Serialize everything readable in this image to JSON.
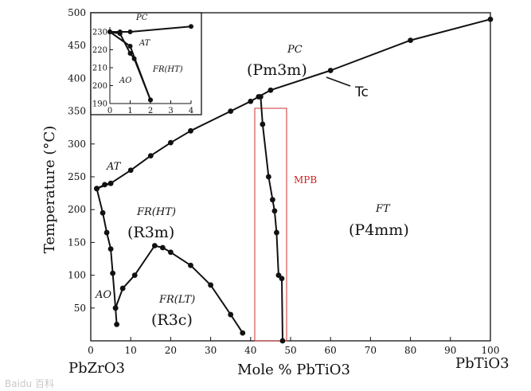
{
  "chart_data": {
    "type": "line",
    "title": "",
    "xlabel": "Mole % PbTiO3",
    "ylabel": "Temperature (°C)",
    "xlim": [
      0,
      100
    ],
    "ylim": [
      0,
      500
    ],
    "x_ticks": [
      0,
      10,
      20,
      30,
      40,
      50,
      60,
      70,
      80,
      90,
      100
    ],
    "y_ticks": [
      50,
      100,
      150,
      200,
      250,
      300,
      350,
      400,
      450,
      500
    ],
    "x_tick_labels": [
      "0",
      "10",
      "20",
      "30",
      "40",
      "50",
      "60",
      "70",
      "80",
      "90",
      "100"
    ],
    "y_tick_labels": [
      "50",
      "100",
      "150",
      "200",
      "250",
      "300",
      "350",
      "400",
      "450",
      "500"
    ],
    "grid": false,
    "composition_labels": {
      "left": "PbZrO3",
      "right": "PbTiO3"
    },
    "series": [
      {
        "points": [
          [
            1.5,
            232
          ],
          [
            5,
            240
          ],
          [
            10,
            260
          ],
          [
            15,
            282
          ],
          [
            20,
            302
          ],
          [
            25,
            320
          ],
          [
            35,
            350
          ],
          [
            40,
            365
          ],
          [
            42,
            372
          ],
          [
            45,
            382
          ],
          [
            60,
            412
          ],
          [
            80,
            458
          ],
          [
            100,
            490
          ]
        ]
      },
      {
        "points": [
          [
            1.5,
            232
          ],
          [
            3.5,
            238
          ],
          [
            5,
            240
          ]
        ]
      },
      {
        "points": [
          [
            1.5,
            232
          ],
          [
            3,
            195
          ],
          [
            4,
            165
          ],
          [
            5,
            140
          ],
          [
            5.5,
            103
          ],
          [
            6.2,
            50
          ],
          [
            6.5,
            25
          ]
        ]
      },
      {
        "points": [
          [
            6.2,
            50
          ],
          [
            8,
            80
          ],
          [
            11,
            100
          ],
          [
            16,
            145
          ],
          [
            18,
            142
          ],
          [
            20,
            135
          ],
          [
            25,
            115
          ],
          [
            30,
            85
          ],
          [
            35,
            40
          ],
          [
            38,
            12
          ]
        ]
      },
      {
        "points": [
          [
            42.5,
            372
          ],
          [
            43,
            330
          ],
          [
            44.5,
            250
          ],
          [
            45.5,
            215
          ],
          [
            46,
            198
          ],
          [
            46.5,
            165
          ],
          [
            47,
            100
          ],
          [
            47.8,
            95
          ],
          [
            48,
            0
          ]
        ]
      }
    ],
    "annotations": {
      "pc": "PC",
      "pm3m": "(Pm3m)",
      "at": "AT",
      "fr_ht": "FR(HT)",
      "r3m": "(R3m)",
      "ao": "AO",
      "fr_lt": "FR(LT)",
      "r3c": "(R3c)",
      "ft": "FT",
      "p4mm": "(P4mm)",
      "tc": "Tc",
      "mpb": "MPB"
    },
    "inset": {
      "xlim": [
        0,
        4
      ],
      "ylim": [
        190,
        230
      ],
      "x_ticks": [
        0,
        1,
        2,
        3,
        4
      ],
      "y_ticks": [
        190,
        200,
        210,
        220,
        230
      ],
      "x_tick_labels": [
        "0",
        "1",
        "2",
        "3",
        "4"
      ],
      "y_tick_labels": [
        "190",
        "200",
        "210",
        "220",
        "230"
      ],
      "series": [
        {
          "points": [
            [
              0,
              230
            ],
            [
              0.5,
              230
            ],
            [
              1,
              230
            ],
            [
              4,
              233
            ]
          ]
        },
        {
          "points": [
            [
              0,
              230
            ],
            [
              1,
              222
            ],
            [
              2,
              192
            ]
          ]
        },
        {
          "points": [
            [
              0,
              230
            ],
            [
              0.5,
              229
            ],
            [
              1,
              218
            ],
            [
              1.2,
              215
            ],
            [
              2,
              192
            ]
          ]
        }
      ],
      "annotations": {
        "pc": "PC",
        "at": "AT",
        "fr_ht": "FR(HT)",
        "ao": "AO"
      }
    }
  },
  "watermark": "Baidu 百科"
}
